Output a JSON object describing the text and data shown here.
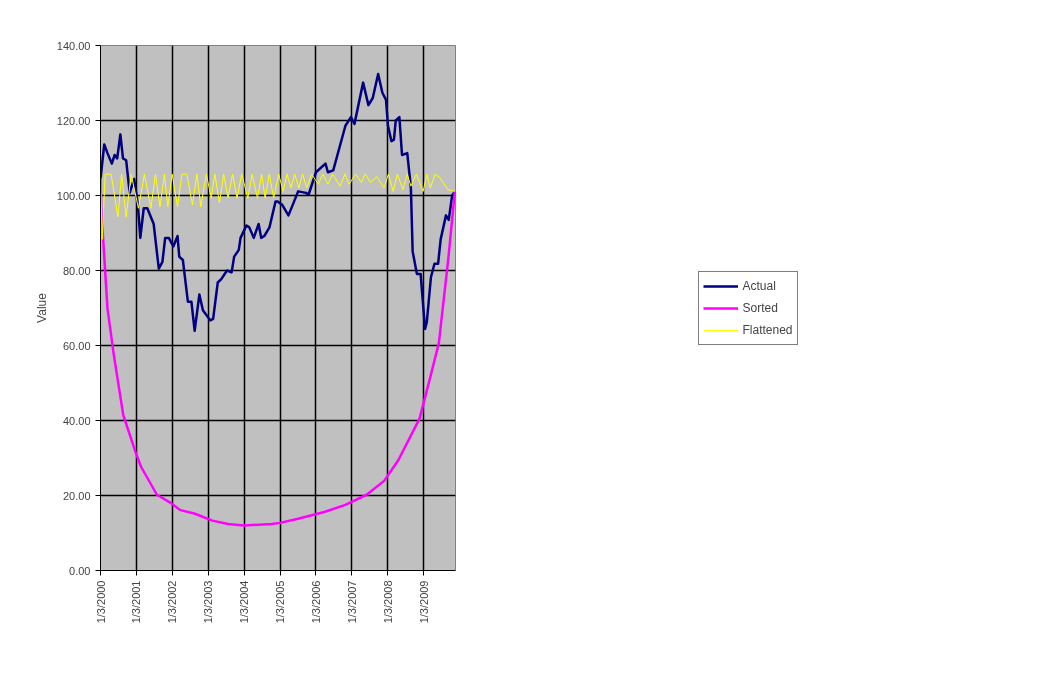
{
  "chart_data": {
    "type": "line",
    "ylabel": "Value",
    "xlim": [
      "2000-01-03",
      "2009-11-23"
    ],
    "xticks": [
      {
        "value": "2000-01-03",
        "label": "1/3/2000"
      },
      {
        "value": "2001-01-03",
        "label": "1/3/2001"
      },
      {
        "value": "2002-01-03",
        "label": "1/3/2002"
      },
      {
        "value": "2003-01-03",
        "label": "1/3/2003"
      },
      {
        "value": "2004-01-03",
        "label": "1/3/2004"
      },
      {
        "value": "2005-01-03",
        "label": "1/3/2005"
      },
      {
        "value": "2006-01-03",
        "label": "1/3/2006"
      },
      {
        "value": "2007-01-03",
        "label": "1/3/2007"
      },
      {
        "value": "2008-01-03",
        "label": "1/3/2008"
      },
      {
        "value": "2009-01-03",
        "label": "1/3/2009"
      }
    ],
    "ylim": [
      0,
      140
    ],
    "yticks": [
      {
        "value": 0,
        "label": "0.00"
      },
      {
        "value": 20,
        "label": "20.00"
      },
      {
        "value": 40,
        "label": "40.00"
      },
      {
        "value": 60,
        "label": "60.00"
      },
      {
        "value": 80,
        "label": "80.00"
      },
      {
        "value": 100,
        "label": "100.00"
      },
      {
        "value": 120,
        "label": "120.00"
      },
      {
        "value": 140,
        "label": "140.00"
      }
    ],
    "grid": true,
    "legend": "right",
    "marker": "none",
    "line_style": "solid",
    "series": [
      {
        "name": "Actual",
        "color": "#000080",
        "x": [
          "2000-01-03",
          "2000-02-10",
          "2000-03-14",
          "2000-04-27",
          "2000-05-26",
          "2000-06-21",
          "2000-07-23",
          "2000-08-19",
          "2000-09-20",
          "2000-10-26",
          "2000-12-10",
          "2001-01-17",
          "2001-02-11",
          "2001-03-18",
          "2001-04-23",
          "2001-06-27",
          "2001-08-18",
          "2001-09-24",
          "2001-10-22",
          "2001-11-28",
          "2002-01-13",
          "2002-02-25",
          "2002-03-14",
          "2002-04-20",
          "2002-06-10",
          "2002-07-16",
          "2002-08-18",
          "2002-10-05",
          "2002-11-10",
          "2003-01-24",
          "2003-02-22",
          "2003-04-10",
          "2003-05-16",
          "2003-07-13",
          "2003-08-29",
          "2003-09-24",
          "2003-11-10",
          "2003-11-28",
          "2004-01-27",
          "2004-02-25",
          "2004-04-10",
          "2004-05-30",
          "2004-06-25",
          "2004-07-27",
          "2004-09-17",
          "2004-11-18",
          "2004-12-10",
          "2005-01-25",
          "2005-03-29",
          "2005-05-12",
          "2005-07-06",
          "2005-09-24",
          "2005-10-20",
          "2006-01-03",
          "2006-04-10",
          "2006-05-05",
          "2006-06-28",
          "2006-10-30",
          "2006-12-25",
          "2007-01-30",
          "2007-04-28",
          "2007-06-21",
          "2007-08-04",
          "2007-09-28",
          "2007-11-10",
          "2007-12-17",
          "2008-01-06",
          "2008-02-10",
          "2008-03-07",
          "2008-03-25",
          "2008-05-01",
          "2008-05-28",
          "2008-07-20",
          "2008-08-26",
          "2008-09-13",
          "2008-10-26",
          "2008-12-03",
          "2009-01-17",
          "2009-02-04",
          "2009-03-18",
          "2009-04-23",
          "2009-05-30",
          "2009-06-25",
          "2009-08-18",
          "2009-09-15",
          "2009-10-20",
          "2009-11-16"
        ],
        "values": [
          104.4,
          113.6,
          111.3,
          108.5,
          110.8,
          109.9,
          116.3,
          109.9,
          109.4,
          100.7,
          104.4,
          97.5,
          88.7,
          96.6,
          96.6,
          92.4,
          80.5,
          82.3,
          88.7,
          88.7,
          86.4,
          89.2,
          83.7,
          82.8,
          71.7,
          71.7,
          63.9,
          73.6,
          69.4,
          66.7,
          67.1,
          76.8,
          77.7,
          80.0,
          79.5,
          83.7,
          85.5,
          88.7,
          92.0,
          91.5,
          88.7,
          92.4,
          88.7,
          89.2,
          91.5,
          98.4,
          98.4,
          97.5,
          94.7,
          97.5,
          101.1,
          100.7,
          100.2,
          106.2,
          108.5,
          106.2,
          106.7,
          118.6,
          120.9,
          119.1,
          130.1,
          124.1,
          126.0,
          132.4,
          127.4,
          125.5,
          118.6,
          114.5,
          114.9,
          120.0,
          120.9,
          110.8,
          111.3,
          102.1,
          85.1,
          79.1,
          79.1,
          64.4,
          66.2,
          78.2,
          81.8,
          81.8,
          88.3,
          94.7,
          93.5,
          100.0,
          101.0
        ]
      },
      {
        "name": "Sorted",
        "color": "#ff00ff",
        "x": [
          "2000-01-03",
          "2000-01-10",
          "2000-02-06",
          "2000-03-14",
          "2000-05-15",
          "2000-08-22",
          "2000-12-28",
          "2001-02-20",
          "2001-07-30",
          "2001-12-25",
          "2002-03-25",
          "2002-08-15",
          "2003-02-14",
          "2003-07-24",
          "2004-01-03",
          "2004-10-08",
          "2005-01-03",
          "2005-07-06",
          "2006-03-28",
          "2006-10-30",
          "2007-06-03",
          "2007-11-28",
          "2008-04-20",
          "2008-11-22",
          "2009-03-11",
          "2009-06-07",
          "2009-09-13",
          "2009-11-16"
        ],
        "values": [
          104.8,
          96.6,
          85.5,
          69.9,
          57.9,
          41.4,
          31.3,
          27.6,
          20.2,
          17.9,
          16.1,
          15.2,
          13.3,
          12.4,
          12.0,
          12.4,
          12.7,
          13.8,
          15.6,
          17.5,
          20.2,
          23.9,
          29.4,
          40.5,
          51.5,
          60.7,
          83.7,
          101.0
        ]
      },
      {
        "name": "Flattened",
        "color": "#ffff00",
        "x": [
          "2000-01-03",
          "2000-01-20",
          "2000-02-20",
          "2000-04-20",
          "2000-06-28",
          "2000-08-05",
          "2000-09-20",
          "2000-11-10",
          "2001-01-23",
          "2001-03-25",
          "2001-05-30",
          "2001-07-15",
          "2001-08-30",
          "2001-10-15",
          "2001-11-18",
          "2002-01-01",
          "2002-02-25",
          "2002-04-10",
          "2002-05-30",
          "2002-07-27",
          "2002-09-10",
          "2002-10-19",
          "2002-12-15",
          "2003-02-03",
          "2003-03-12",
          "2003-04-27",
          "2003-06-10",
          "2003-07-24",
          "2003-09-08",
          "2003-10-23",
          "2003-12-10",
          "2004-02-10",
          "2004-03-25",
          "2004-05-18",
          "2004-06-30",
          "2004-08-04",
          "2004-09-15",
          "2004-10-30",
          "2004-12-20",
          "2005-02-03",
          "2005-03-15",
          "2005-04-23",
          "2005-06-01",
          "2005-07-13",
          "2005-08-20",
          "2005-10-01",
          "2005-11-20",
          "2006-01-27",
          "2006-03-15",
          "2006-05-05",
          "2006-06-20",
          "2006-09-06",
          "2006-10-25",
          "2006-12-06",
          "2007-02-10",
          "2007-04-10",
          "2007-05-20",
          "2007-07-10",
          "2007-09-15",
          "2007-11-28",
          "2008-01-10",
          "2008-02-28",
          "2008-04-10",
          "2008-06-06",
          "2008-07-20",
          "2008-08-26",
          "2008-10-20",
          "2008-12-28",
          "2009-02-05",
          "2009-03-11",
          "2009-04-30",
          "2009-06-15",
          "2009-09-06",
          "2009-11-16"
        ],
        "values": [
          105.0,
          88.3,
          105.7,
          105.7,
          94.3,
          105.7,
          94.3,
          105.7,
          96.6,
          105.7,
          96.6,
          105.7,
          97.0,
          105.7,
          97.0,
          105.7,
          97.0,
          105.7,
          105.7,
          97.5,
          105.7,
          97.0,
          105.7,
          99.3,
          105.7,
          98.0,
          105.7,
          99.3,
          105.7,
          99.3,
          105.7,
          99.3,
          105.7,
          99.3,
          105.7,
          99.3,
          105.7,
          99.3,
          105.7,
          101.1,
          105.7,
          102.0,
          105.7,
          102.0,
          105.7,
          102.0,
          105.7,
          103.0,
          105.7,
          103.0,
          105.7,
          102.5,
          105.7,
          103.0,
          105.7,
          103.5,
          105.7,
          103.5,
          105.0,
          102.0,
          105.7,
          101.1,
          105.7,
          101.6,
          105.7,
          102.5,
          105.7,
          101.1,
          105.7,
          102.0,
          105.7,
          104.8,
          101.6,
          101.1
        ]
      }
    ]
  }
}
